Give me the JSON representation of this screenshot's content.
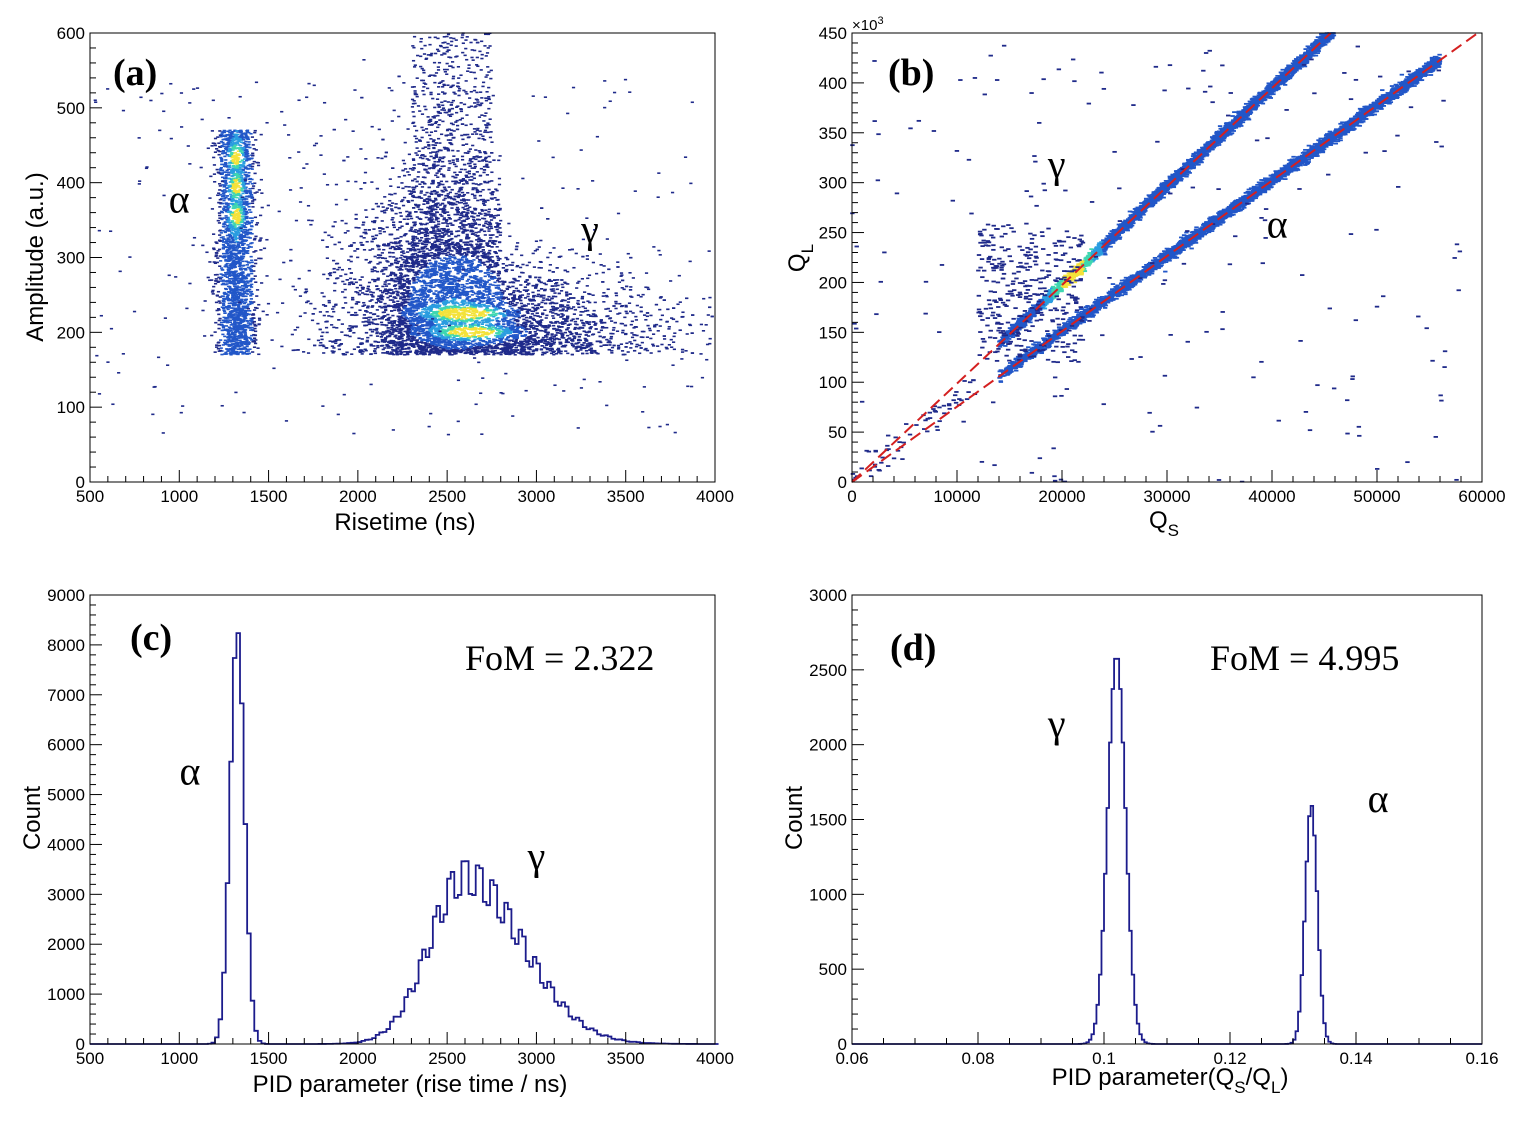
{
  "chart_data": [
    {
      "panel": "(a)",
      "type": "heatmap",
      "xlabel": "Risetime (ns)",
      "ylabel": "Amplitude (a.u.)",
      "xlim": [
        500,
        4000
      ],
      "ylim": [
        0,
        600
      ],
      "xticks": [
        "500",
        "1000",
        "1500",
        "2000",
        "2500",
        "3000",
        "3500",
        "4000"
      ],
      "yticks": [
        "0",
        "100",
        "200",
        "300",
        "400",
        "500",
        "600"
      ],
      "annotations": [
        {
          "text": "α",
          "x": 1000,
          "y": 360
        },
        {
          "text": "γ",
          "x": 3300,
          "y": 320
        }
      ],
      "clusters": [
        {
          "name": "α",
          "x_center": 1320,
          "x_width": 70,
          "y_range": [
            170,
            470
          ],
          "hot_y": [
            355,
            395,
            435
          ]
        },
        {
          "name": "γ",
          "x_range": [
            2000,
            4000
          ],
          "y_range": [
            150,
            600
          ],
          "hot_spots": [
            {
              "x": 2600,
              "y": 225
            },
            {
              "x": 2650,
              "y": 200
            }
          ]
        }
      ],
      "colorscale": [
        "#1f2a8a",
        "#2257c8",
        "#2a9de0",
        "#3fd7b0",
        "#f4e23a"
      ]
    },
    {
      "panel": "(b)",
      "type": "heatmap",
      "xlabel": "Q",
      "xlabel_sub": "S",
      "ylabel": "Q",
      "ylabel_sub": "L",
      "y_multiplier": "×10",
      "y_multiplier_exp": "3",
      "xlim": [
        0,
        60000
      ],
      "ylim": [
        0,
        450
      ],
      "xticks": [
        "0",
        "10000",
        "20000",
        "30000",
        "40000",
        "50000",
        "60000"
      ],
      "yticks": [
        "0",
        "50",
        "100",
        "150",
        "200",
        "250",
        "300",
        "350",
        "400",
        "450"
      ],
      "annotations": [
        {
          "text": "γ",
          "x": 19500,
          "y": 305
        },
        {
          "text": "α",
          "x": 40500,
          "y": 245
        }
      ],
      "fit_lines": [
        {
          "name": "γ",
          "slope": 0.00987,
          "color": "#d42020",
          "style": "dashed"
        },
        {
          "name": "α",
          "slope": 0.00755,
          "color": "#d42020",
          "style": "dashed"
        }
      ]
    },
    {
      "panel": "(c)",
      "type": "bar",
      "style": "step-histogram",
      "xlabel": "PID parameter (rise time / ns)",
      "ylabel": "Count",
      "xlim": [
        500,
        4000
      ],
      "ylim": [
        0,
        9000
      ],
      "xticks": [
        "500",
        "1000",
        "1500",
        "2000",
        "2500",
        "3000",
        "3500",
        "4000"
      ],
      "yticks": [
        "0",
        "1000",
        "2000",
        "3000",
        "4000",
        "5000",
        "6000",
        "7000",
        "8000",
        "9000"
      ],
      "fom_label": "FoM = 2.322",
      "annotations": [
        {
          "text": "α",
          "x": 1060,
          "y": 5200
        },
        {
          "text": "γ",
          "x": 3000,
          "y": 3500
        }
      ],
      "series": [
        {
          "name": "α",
          "mean": 1325,
          "sigma": 40,
          "peak": 8300
        },
        {
          "name": "γ",
          "mean": 2600,
          "sigma_left": 200,
          "sigma_right": 320,
          "peak": 3800
        }
      ],
      "color": "#1c1c8c"
    },
    {
      "panel": "(d)",
      "type": "bar",
      "style": "step-histogram",
      "xlabel": "PID parameter(Q",
      "xlabel_sub1": "S",
      "xlabel_mid": "/Q",
      "xlabel_sub2": "L",
      "xlabel_end": ")",
      "ylabel": "Count",
      "xlim": [
        0.06,
        0.16
      ],
      "ylim": [
        0,
        3000
      ],
      "xticks": [
        "0.06",
        "0.08",
        "0.1",
        "0.12",
        "0.14",
        "0.16"
      ],
      "yticks": [
        "0",
        "500",
        "1000",
        "1500",
        "2000",
        "2500",
        "3000"
      ],
      "fom_label": "FoM = 4.995",
      "annotations": [
        {
          "text": "γ",
          "x": 0.0925,
          "y": 2050
        },
        {
          "text": "α",
          "x": 0.1435,
          "y": 1550
        }
      ],
      "series": [
        {
          "name": "γ",
          "mean": 0.102,
          "sigma": 0.0014,
          "peak": 2600
        },
        {
          "name": "α",
          "mean": 0.1329,
          "sigma": 0.00095,
          "peak": 1600
        }
      ],
      "color": "#1c1c8c"
    }
  ]
}
